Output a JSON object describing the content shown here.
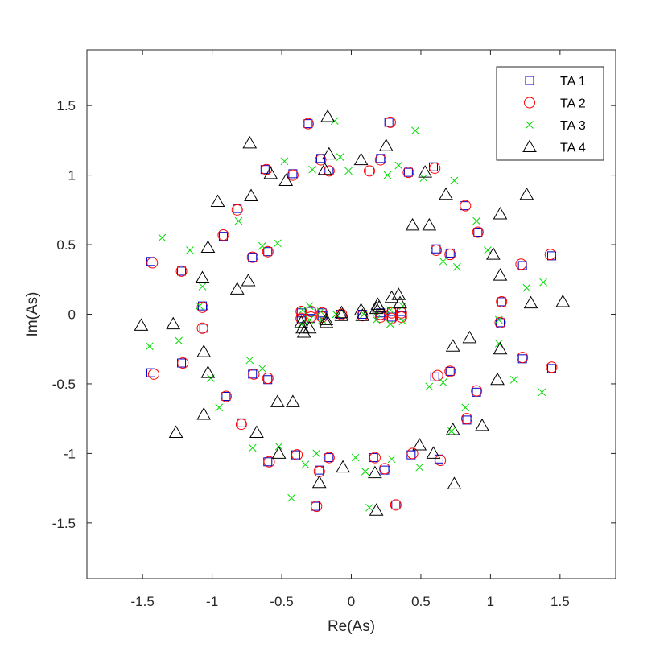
{
  "chart_data": {
    "type": "scatter",
    "title": "",
    "xlabel": "Re(As)",
    "ylabel": "Im(As)",
    "xlim": [
      -1.9,
      1.9
    ],
    "ylim": [
      -1.9,
      1.9
    ],
    "xticks": [
      -1.5,
      -1,
      -0.5,
      0,
      0.5,
      1,
      1.5
    ],
    "yticks": [
      -1.5,
      -1,
      -0.5,
      0,
      0.5,
      1,
      1.5
    ],
    "grid": false,
    "legend_position": "top-right",
    "series": [
      {
        "name": "TA 1",
        "marker": "square",
        "color": "#0000cc",
        "points": [
          [
            0.27,
            1.38
          ],
          [
            -0.31,
            1.37
          ],
          [
            -0.22,
            1.12
          ],
          [
            0.21,
            1.12
          ],
          [
            -0.62,
            1.04
          ],
          [
            0.59,
            1.06
          ],
          [
            -0.42,
            1.01
          ],
          [
            -0.16,
            1.03
          ],
          [
            0.13,
            1.03
          ],
          [
            0.41,
            1.02
          ],
          [
            -0.82,
            0.76
          ],
          [
            0.81,
            0.78
          ],
          [
            -0.92,
            0.56
          ],
          [
            0.91,
            0.59
          ],
          [
            -0.71,
            0.41
          ],
          [
            0.71,
            0.44
          ],
          [
            -0.6,
            0.45
          ],
          [
            0.61,
            0.47
          ],
          [
            -1.44,
            0.38
          ],
          [
            -1.22,
            0.31
          ],
          [
            1.23,
            0.35
          ],
          [
            1.44,
            0.42
          ],
          [
            -1.07,
            0.06
          ],
          [
            1.08,
            0.09
          ],
          [
            -1.06,
            -0.1
          ],
          [
            1.07,
            -0.06
          ],
          [
            -1.44,
            -0.42
          ],
          [
            -1.22,
            -0.35
          ],
          [
            1.23,
            -0.32
          ],
          [
            1.44,
            -0.39
          ],
          [
            -0.71,
            -0.43
          ],
          [
            -0.6,
            -0.47
          ],
          [
            0.6,
            -0.45
          ],
          [
            0.71,
            -0.41
          ],
          [
            -0.9,
            -0.59
          ],
          [
            0.9,
            -0.56
          ],
          [
            -0.79,
            -0.78
          ],
          [
            0.83,
            -0.76
          ],
          [
            -0.6,
            -1.06
          ],
          [
            0.63,
            -1.04
          ],
          [
            -0.4,
            -1.01
          ],
          [
            -0.16,
            -1.03
          ],
          [
            0.16,
            -1.03
          ],
          [
            0.43,
            -1.01
          ],
          [
            -0.23,
            -1.12
          ],
          [
            0.24,
            -1.12
          ],
          [
            -0.26,
            -1.38
          ],
          [
            0.32,
            -1.37
          ],
          [
            -0.36,
            0.01
          ],
          [
            -0.36,
            -0.03
          ],
          [
            -0.29,
            0.02
          ],
          [
            -0.29,
            -0.03
          ],
          [
            -0.21,
            0.01
          ],
          [
            -0.21,
            -0.01
          ],
          [
            -0.08,
            0.0
          ],
          [
            0.08,
            0.0
          ],
          [
            0.21,
            0.01
          ],
          [
            0.21,
            -0.01
          ],
          [
            0.29,
            0.02
          ],
          [
            0.29,
            -0.02
          ],
          [
            0.36,
            0.02
          ],
          [
            0.36,
            -0.01
          ]
        ]
      },
      {
        "name": "TA 2",
        "marker": "circle",
        "color": "#ff0000",
        "points": [
          [
            0.28,
            1.38
          ],
          [
            -0.31,
            1.37
          ],
          [
            -0.22,
            1.11
          ],
          [
            0.21,
            1.11
          ],
          [
            -0.61,
            1.04
          ],
          [
            0.6,
            1.05
          ],
          [
            -0.42,
            1.0
          ],
          [
            -0.16,
            1.03
          ],
          [
            0.13,
            1.03
          ],
          [
            0.41,
            1.02
          ],
          [
            -0.82,
            0.75
          ],
          [
            0.82,
            0.78
          ],
          [
            -0.92,
            0.57
          ],
          [
            0.91,
            0.59
          ],
          [
            -0.71,
            0.41
          ],
          [
            0.71,
            0.43
          ],
          [
            -0.6,
            0.45
          ],
          [
            0.61,
            0.46
          ],
          [
            -1.43,
            0.37
          ],
          [
            -1.22,
            0.31
          ],
          [
            1.22,
            0.36
          ],
          [
            1.43,
            0.43
          ],
          [
            -1.07,
            0.05
          ],
          [
            1.08,
            0.09
          ],
          [
            -1.07,
            -0.1
          ],
          [
            1.07,
            -0.06
          ],
          [
            -1.42,
            -0.43
          ],
          [
            -1.21,
            -0.35
          ],
          [
            1.23,
            -0.31
          ],
          [
            1.44,
            -0.38
          ],
          [
            -0.7,
            -0.43
          ],
          [
            -0.6,
            -0.46
          ],
          [
            0.62,
            -0.44
          ],
          [
            0.71,
            -0.41
          ],
          [
            -0.9,
            -0.59
          ],
          [
            0.9,
            -0.55
          ],
          [
            -0.79,
            -0.79
          ],
          [
            0.83,
            -0.75
          ],
          [
            -0.59,
            -1.06
          ],
          [
            0.64,
            -1.05
          ],
          [
            -0.39,
            -1.01
          ],
          [
            -0.16,
            -1.03
          ],
          [
            0.17,
            -1.03
          ],
          [
            0.44,
            -1.0
          ],
          [
            -0.23,
            -1.13
          ],
          [
            0.24,
            -1.11
          ],
          [
            -0.25,
            -1.38
          ],
          [
            0.32,
            -1.37
          ],
          [
            -0.36,
            0.02
          ],
          [
            -0.36,
            -0.03
          ],
          [
            -0.29,
            0.02
          ],
          [
            -0.29,
            -0.02
          ],
          [
            -0.21,
            0.01
          ],
          [
            -0.21,
            -0.02
          ],
          [
            -0.07,
            0.0
          ],
          [
            0.08,
            -0.01
          ],
          [
            0.21,
            0.0
          ],
          [
            0.21,
            -0.02
          ],
          [
            0.29,
            0.01
          ],
          [
            0.29,
            -0.03
          ],
          [
            0.36,
            0.01
          ],
          [
            0.36,
            -0.02
          ]
        ]
      },
      {
        "name": "TA 3",
        "marker": "x",
        "color": "#00dd00",
        "points": [
          [
            -0.12,
            1.39
          ],
          [
            0.46,
            1.32
          ],
          [
            -0.48,
            1.1
          ],
          [
            -0.08,
            1.13
          ],
          [
            0.34,
            1.07
          ],
          [
            -0.28,
            1.04
          ],
          [
            -0.02,
            1.03
          ],
          [
            0.26,
            1.0
          ],
          [
            0.52,
            0.98
          ],
          [
            0.74,
            0.96
          ],
          [
            -0.81,
            0.67
          ],
          [
            0.9,
            0.67
          ],
          [
            -1.36,
            0.55
          ],
          [
            -1.16,
            0.46
          ],
          [
            -0.64,
            0.49
          ],
          [
            -0.53,
            0.51
          ],
          [
            0.66,
            0.38
          ],
          [
            0.76,
            0.34
          ],
          [
            0.98,
            0.46
          ],
          [
            1.26,
            0.19
          ],
          [
            1.38,
            0.23
          ],
          [
            -1.07,
            0.2
          ],
          [
            -1.09,
            0.06
          ],
          [
            1.06,
            -0.04
          ],
          [
            1.06,
            -0.21
          ],
          [
            -1.45,
            -0.23
          ],
          [
            -1.24,
            -0.19
          ],
          [
            -1.01,
            -0.46
          ],
          [
            -0.73,
            -0.33
          ],
          [
            -0.64,
            -0.39
          ],
          [
            0.56,
            -0.52
          ],
          [
            0.66,
            -0.49
          ],
          [
            1.17,
            -0.47
          ],
          [
            1.37,
            -0.56
          ],
          [
            -0.95,
            -0.67
          ],
          [
            0.82,
            -0.67
          ],
          [
            -0.71,
            -0.96
          ],
          [
            -0.52,
            -0.95
          ],
          [
            0.72,
            -0.84
          ],
          [
            -0.33,
            -1.08
          ],
          [
            -0.25,
            -1.0
          ],
          [
            0.03,
            -1.03
          ],
          [
            0.1,
            -1.13
          ],
          [
            0.29,
            -1.04
          ],
          [
            0.49,
            -1.1
          ],
          [
            -0.43,
            -1.32
          ],
          [
            0.13,
            -1.39
          ],
          [
            -0.35,
            0.03
          ],
          [
            -0.36,
            -0.07
          ],
          [
            -0.3,
            0.06
          ],
          [
            -0.3,
            -0.04
          ],
          [
            -0.22,
            0.02
          ],
          [
            -0.21,
            -0.04
          ],
          [
            -0.11,
            0.0
          ],
          [
            0.09,
            0.0
          ],
          [
            0.18,
            0.01
          ],
          [
            0.18,
            -0.04
          ],
          [
            0.28,
            0.03
          ],
          [
            0.28,
            -0.07
          ],
          [
            0.37,
            0.06
          ],
          [
            0.37,
            -0.05
          ]
        ]
      },
      {
        "name": "TA 4",
        "marker": "triangle",
        "color": "#000000",
        "points": [
          [
            -0.17,
            1.42
          ],
          [
            -0.73,
            1.23
          ],
          [
            0.25,
            1.21
          ],
          [
            -0.16,
            1.15
          ],
          [
            0.07,
            1.11
          ],
          [
            -0.19,
            1.04
          ],
          [
            -0.58,
            1.01
          ],
          [
            -0.47,
            0.96
          ],
          [
            0.53,
            1.02
          ],
          [
            0.68,
            0.86
          ],
          [
            1.26,
            0.86
          ],
          [
            -0.96,
            0.81
          ],
          [
            -0.72,
            0.85
          ],
          [
            0.44,
            0.64
          ],
          [
            0.56,
            0.64
          ],
          [
            1.07,
            0.72
          ],
          [
            -1.03,
            0.48
          ],
          [
            1.02,
            0.43
          ],
          [
            -1.07,
            0.26
          ],
          [
            -0.74,
            0.24
          ],
          [
            -0.82,
            0.18
          ],
          [
            1.07,
            0.28
          ],
          [
            -1.51,
            -0.08
          ],
          [
            -1.28,
            -0.07
          ],
          [
            1.29,
            0.08
          ],
          [
            1.52,
            0.09
          ],
          [
            -1.06,
            -0.27
          ],
          [
            -1.03,
            -0.42
          ],
          [
            1.07,
            -0.25
          ],
          [
            0.73,
            -0.23
          ],
          [
            0.85,
            -0.17
          ],
          [
            1.05,
            -0.47
          ],
          [
            -1.26,
            -0.85
          ],
          [
            -1.06,
            -0.72
          ],
          [
            -0.68,
            -0.85
          ],
          [
            -0.53,
            -0.63
          ],
          [
            -0.42,
            -0.63
          ],
          [
            0.73,
            -0.83
          ],
          [
            0.94,
            -0.8
          ],
          [
            -0.52,
            -1.0
          ],
          [
            -0.23,
            -1.21
          ],
          [
            -0.06,
            -1.1
          ],
          [
            0.17,
            -1.14
          ],
          [
            0.49,
            -0.94
          ],
          [
            0.59,
            -1.0
          ],
          [
            0.18,
            -1.41
          ],
          [
            0.74,
            -1.22
          ],
          [
            -0.35,
            -0.1
          ],
          [
            -0.34,
            -0.13
          ],
          [
            -0.3,
            -0.1
          ],
          [
            -0.18,
            -0.06
          ],
          [
            -0.07,
            -0.01
          ],
          [
            0.07,
            0.03
          ],
          [
            0.19,
            0.07
          ],
          [
            0.2,
            0.05
          ],
          [
            0.29,
            0.12
          ],
          [
            0.34,
            0.14
          ],
          [
            -0.36,
            -0.06
          ],
          [
            0.35,
            0.08
          ],
          [
            -0.18,
            -0.04
          ],
          [
            0.18,
            0.04
          ],
          [
            -0.07,
            0.01
          ],
          [
            0.08,
            -0.01
          ]
        ]
      }
    ]
  }
}
